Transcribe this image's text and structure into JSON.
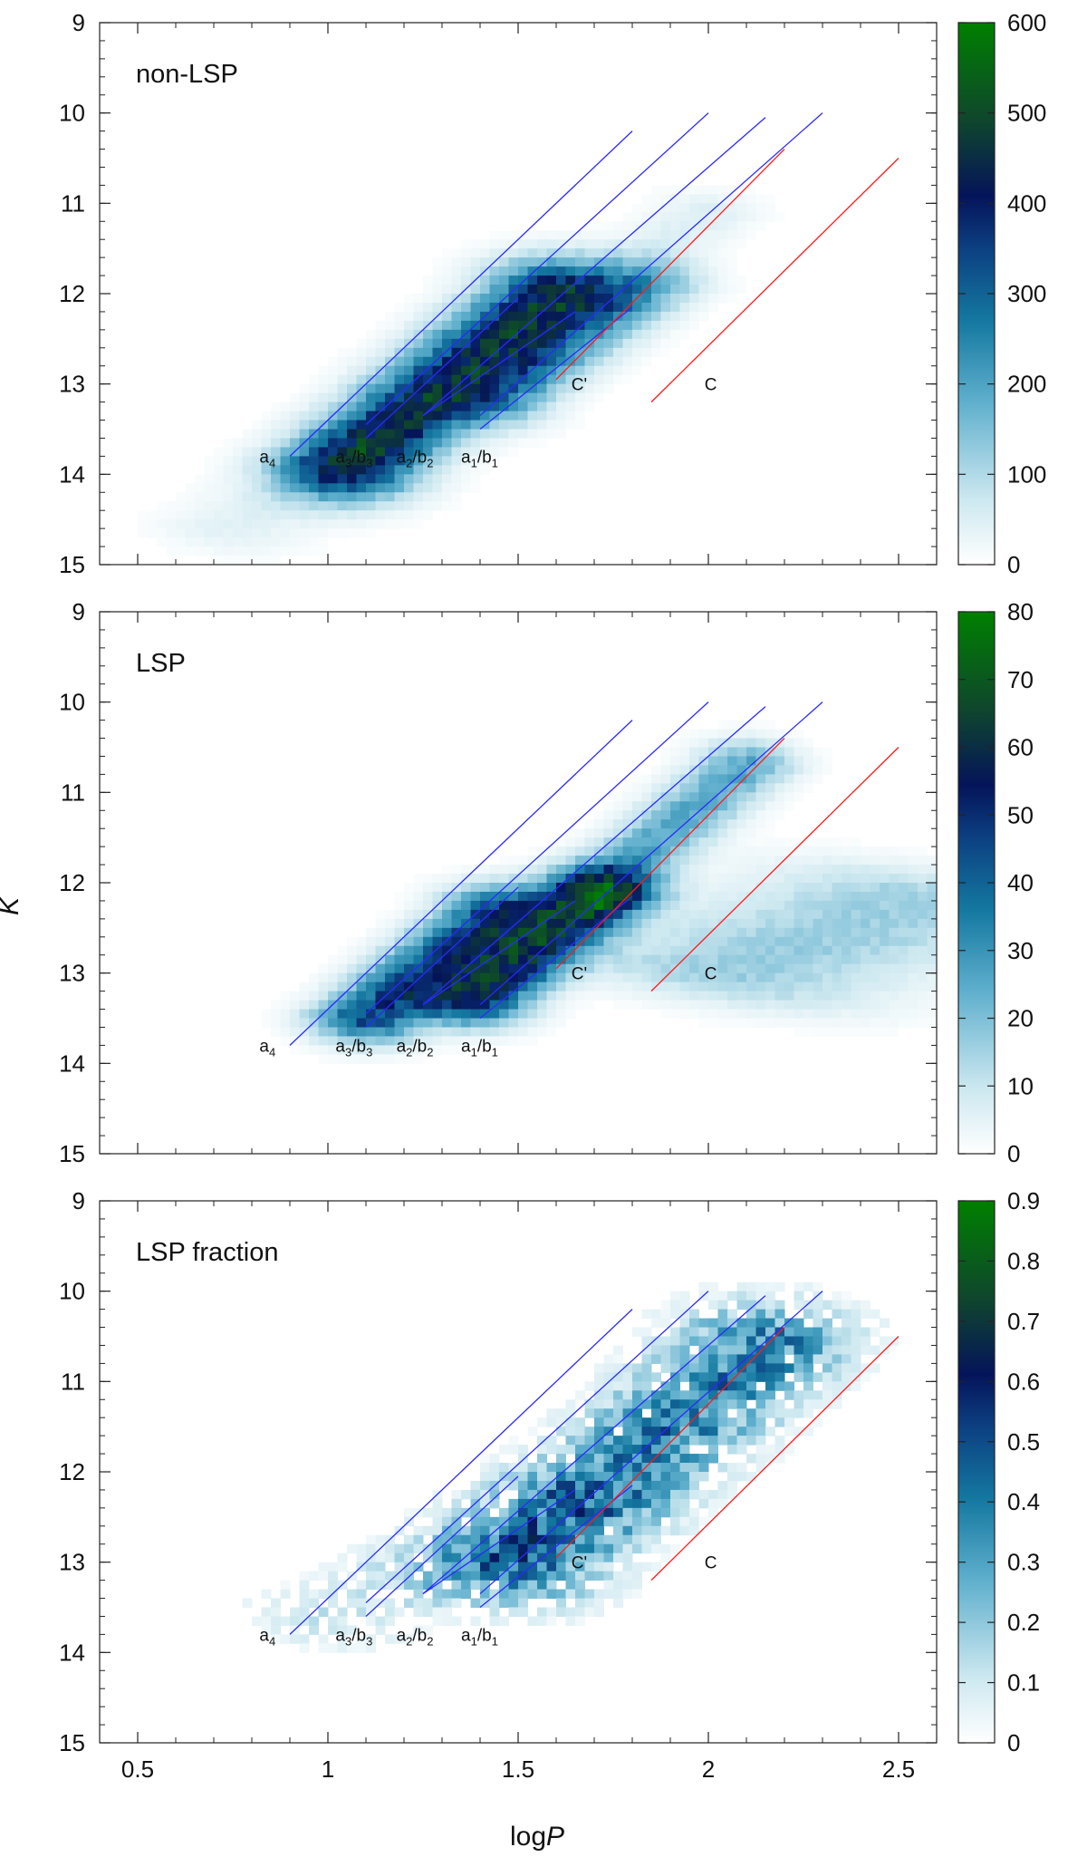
{
  "chart_data": [
    {
      "type": "heatmap",
      "title": "non-LSP",
      "xlabel": "logP",
      "ylabel": "K",
      "xlim": [
        0.4,
        2.6
      ],
      "ylim": [
        15,
        9
      ],
      "x_ticks": [
        "0.5",
        "1",
        "1.5",
        "2",
        "2.5"
      ],
      "y_ticks": [
        "9",
        "10",
        "11",
        "12",
        "13",
        "14",
        "15"
      ],
      "colorbar": {
        "min": 0,
        "max": 600,
        "ticks": [
          "0",
          "100",
          "200",
          "300",
          "400",
          "500",
          "600"
        ]
      },
      "density_ridges": [
        {
          "x0": 1.05,
          "x1": 1.6,
          "k0": 13.9,
          "k1": 12.0,
          "width": 0.15,
          "peak": 0.72
        },
        {
          "x0": 1.45,
          "x1": 1.85,
          "k0": 13.2,
          "k1": 11.9,
          "width": 0.12,
          "peak": 0.25
        },
        {
          "x0": 1.7,
          "x1": 2.0,
          "k0": 12.0,
          "k1": 11.1,
          "width": 0.12,
          "peak": 0.08
        },
        {
          "x0": 0.75,
          "x1": 1.1,
          "k0": 14.6,
          "k1": 13.7,
          "width": 0.17,
          "peak": 0.07
        }
      ]
    },
    {
      "type": "heatmap",
      "title": "LSP",
      "xlabel": "logP",
      "ylabel": "K",
      "xlim": [
        0.4,
        2.6
      ],
      "ylim": [
        15,
        9
      ],
      "x_ticks": [
        "0.5",
        "1",
        "1.5",
        "2",
        "2.5"
      ],
      "y_ticks": [
        "9",
        "10",
        "11",
        "12",
        "13",
        "14",
        "15"
      ],
      "colorbar": {
        "min": 0,
        "max": 80,
        "ticks": [
          "0",
          "10",
          "20",
          "30",
          "40",
          "50",
          "60",
          "70",
          "80"
        ]
      },
      "density_ridges": [
        {
          "x0": 1.1,
          "x1": 1.45,
          "k0": 13.5,
          "k1": 12.3,
          "width": 0.12,
          "peak": 0.55
        },
        {
          "x0": 1.38,
          "x1": 1.72,
          "k0": 13.3,
          "k1": 12.1,
          "width": 0.12,
          "peak": 0.68
        },
        {
          "x0": 1.7,
          "x1": 2.1,
          "k0": 12.1,
          "k1": 10.7,
          "width": 0.11,
          "peak": 0.32
        },
        {
          "x0": 2.05,
          "x1": 2.55,
          "k0": 13.0,
          "k1": 12.2,
          "width": 0.35,
          "peak": 0.2
        }
      ]
    },
    {
      "type": "heatmap",
      "title": "LSP fraction",
      "xlabel": "logP",
      "ylabel": "K",
      "xlim": [
        0.4,
        2.6
      ],
      "ylim": [
        15,
        9
      ],
      "x_ticks": [
        "0.5",
        "1",
        "1.5",
        "2",
        "2.5"
      ],
      "y_ticks": [
        "9",
        "10",
        "11",
        "12",
        "13",
        "14",
        "15"
      ],
      "colorbar": {
        "min": 0,
        "max": 0.9,
        "ticks": [
          "0",
          "0.1",
          "0.2",
          "0.3",
          "0.4",
          "0.5",
          "0.6",
          "0.7",
          "0.8",
          "0.9"
        ]
      },
      "density_ridges": [
        {
          "x0": 1.0,
          "x1": 1.6,
          "k0": 13.6,
          "k1": 12.4,
          "width": 0.2,
          "peak": 0.12
        },
        {
          "x0": 1.5,
          "x1": 2.15,
          "k0": 13.0,
          "k1": 10.6,
          "width": 0.2,
          "peak": 0.42
        }
      ]
    }
  ],
  "sequences": [
    {
      "name": "a4",
      "label": "a",
      "sub": "4",
      "label_x": 0.82,
      "label_k": 13.8,
      "color": "#2a2aff",
      "segments": [
        {
          "x0": 0.9,
          "k0": 13.8,
          "x1": 1.8,
          "k1": 10.2
        }
      ]
    },
    {
      "name": "a3/b3",
      "label": "a",
      "sub": "3",
      "label2": "/b",
      "sub2": "3",
      "label_x": 1.02,
      "label_k": 13.8,
      "color": "#2a2aff",
      "segments": [
        {
          "x0": 1.1,
          "k0": 13.45,
          "x1": 2.0,
          "k1": 10.0
        },
        {
          "x0": 1.1,
          "k0": 13.6,
          "x1": 1.5,
          "k1": 12.05
        }
      ]
    },
    {
      "name": "a2/b2",
      "label": "a",
      "sub": "2",
      "label2": "/b",
      "sub2": "2",
      "label_x": 1.18,
      "label_k": 13.8,
      "color": "#2a2aff",
      "segments": [
        {
          "x0": 1.25,
          "k0": 13.35,
          "x1": 2.15,
          "k1": 10.05
        },
        {
          "x0": 1.25,
          "k0": 13.35,
          "x1": 1.65,
          "k1": 12.2
        }
      ]
    },
    {
      "name": "a1/b1",
      "label": "a",
      "sub": "1",
      "label2": "/b",
      "sub2": "1",
      "label_x": 1.35,
      "label_k": 13.8,
      "color": "#2a2aff",
      "segments": [
        {
          "x0": 1.4,
          "k0": 13.35,
          "x1": 2.3,
          "k1": 10.0
        },
        {
          "x0": 1.4,
          "k0": 13.5,
          "x1": 1.8,
          "k1": 12.15
        }
      ]
    },
    {
      "name": "C'",
      "label": "C'",
      "label_x": 1.64,
      "label_k": 13.0,
      "color": "#ff1a1a",
      "segments": [
        {
          "x0": 1.6,
          "k0": 12.95,
          "x1": 2.2,
          "k1": 10.4
        }
      ]
    },
    {
      "name": "C",
      "label": "C",
      "label_x": 1.99,
      "label_k": 13.0,
      "color": "#ff1a1a",
      "segments": [
        {
          "x0": 1.85,
          "k0": 13.2,
          "x1": 2.5,
          "k1": 10.5
        }
      ]
    }
  ]
}
